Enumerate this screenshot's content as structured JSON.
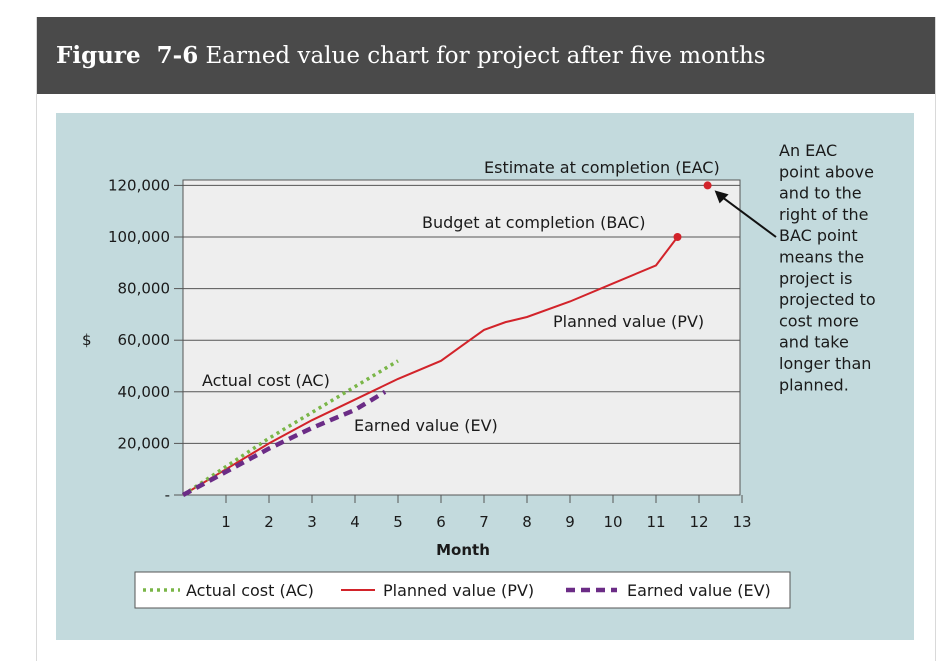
{
  "figure": {
    "label": "Figure",
    "number": "7-6",
    "caption": "Earned value chart for project after five months"
  },
  "colors": {
    "panel_bg": "#c3dadd",
    "plot_bg": "#eeeeee",
    "ac": "#7ab648",
    "pv": "#d2232a",
    "ev": "#6b2c86",
    "header_bg": "#4a4a4a"
  },
  "chart_data": {
    "type": "line",
    "xlabel": "Month",
    "ylabel": "$",
    "xlim": [
      0,
      13
    ],
    "ylim": [
      0,
      130000
    ],
    "x_ticks": [
      1,
      2,
      3,
      4,
      5,
      6,
      7,
      8,
      9,
      10,
      11,
      12,
      13
    ],
    "y_ticks": [
      {
        "value": 0,
        "label": "-"
      },
      {
        "value": 20000,
        "label": "20,000"
      },
      {
        "value": 40000,
        "label": "40,000"
      },
      {
        "value": 60000,
        "label": "60,000"
      },
      {
        "value": 80000,
        "label": "80,000"
      },
      {
        "value": 100000,
        "label": "100,000"
      },
      {
        "value": 120000,
        "label": "120,000"
      }
    ],
    "grid": true,
    "legend_position": "bottom",
    "series": [
      {
        "name": "Actual cost (AC)",
        "style": "dotted",
        "points": [
          [
            0,
            0
          ],
          [
            1,
            11000
          ],
          [
            2,
            22000
          ],
          [
            3,
            32000
          ],
          [
            4,
            42000
          ],
          [
            5,
            52000
          ]
        ]
      },
      {
        "name": "Planned value (PV)",
        "style": "solid",
        "points": [
          [
            0,
            0
          ],
          [
            1,
            10000
          ],
          [
            2,
            20000
          ],
          [
            3,
            29000
          ],
          [
            4,
            37000
          ],
          [
            5,
            45000
          ],
          [
            6,
            52000
          ],
          [
            6.5,
            58000
          ],
          [
            7,
            64000
          ],
          [
            7.5,
            67000
          ],
          [
            8,
            69000
          ],
          [
            9,
            75000
          ],
          [
            10,
            82000
          ],
          [
            11,
            89000
          ],
          [
            11.5,
            100000
          ]
        ]
      },
      {
        "name": "Earned value (EV)",
        "style": "dashed",
        "points": [
          [
            0,
            0
          ],
          [
            1,
            9000
          ],
          [
            2,
            18000
          ],
          [
            3,
            26000
          ],
          [
            4,
            33000
          ],
          [
            4.7,
            40000
          ]
        ]
      }
    ],
    "annotations": {
      "eac_label": "Estimate at completion (EAC)",
      "bac_label": "Budget at completion (BAC)",
      "pv_label": "Planned value (PV)",
      "ac_label": "Actual cost (AC)",
      "ev_label": "Earned value (EV)",
      "eac_point": [
        12.2,
        120000
      ],
      "bac_point": [
        11.5,
        100000
      ],
      "note_lines": [
        "An EAC",
        "point above",
        "and to the",
        "right of the",
        "BAC point",
        "means the",
        "project is",
        "projected to",
        "cost more",
        "and take",
        "longer than",
        "planned."
      ]
    }
  }
}
